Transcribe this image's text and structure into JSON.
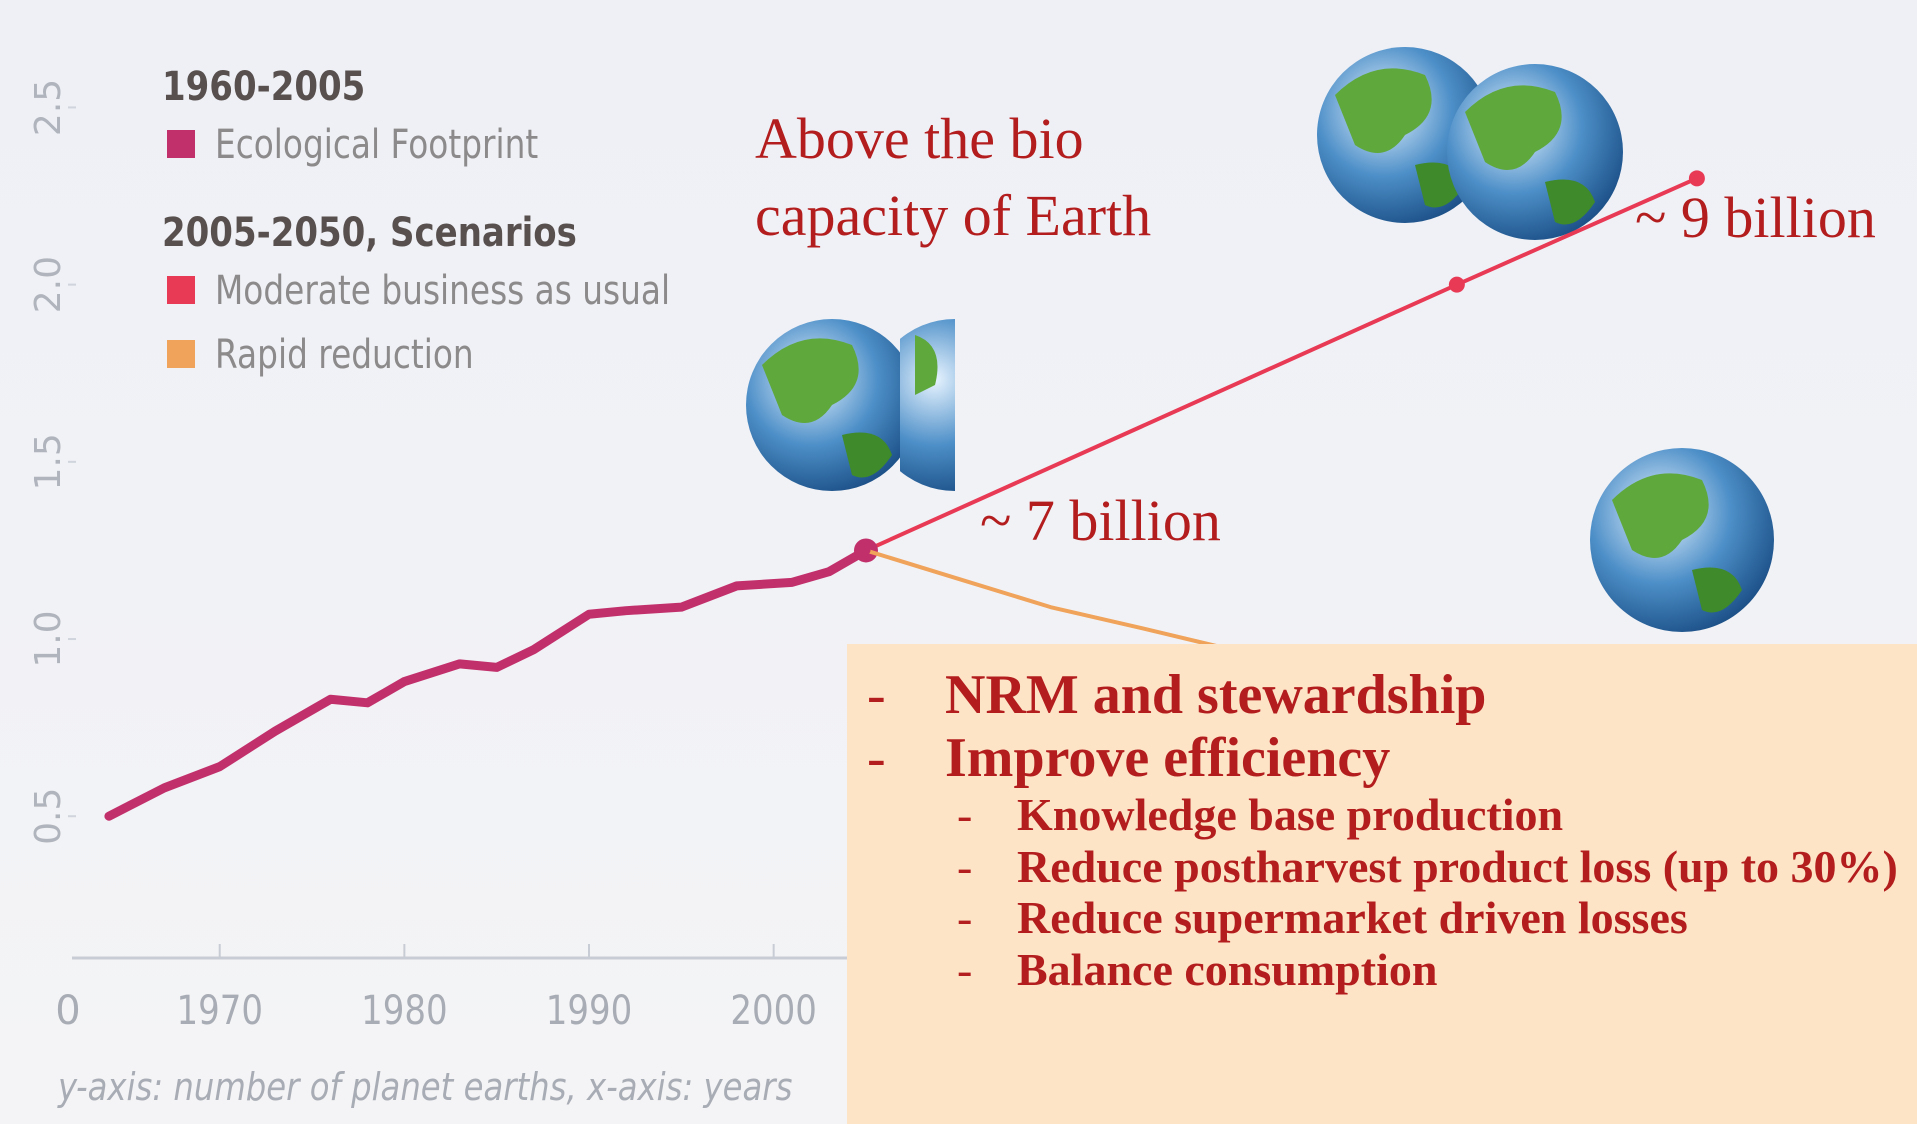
{
  "chart_data": {
    "type": "line",
    "legend_groups": [
      "1960-2005",
      "2005-2050, Scenarios"
    ],
    "series": [
      {
        "name": "Ecological Footprint",
        "color": "#c2306c",
        "group": 0,
        "x": [
          1964,
          1967,
          1970,
          1973,
          1976,
          1978,
          1980,
          1983,
          1985,
          1987,
          1990,
          1992,
          1995,
          1998,
          2001,
          2003,
          2005
        ],
        "values": [
          0.5,
          0.58,
          0.64,
          0.74,
          0.83,
          0.82,
          0.88,
          0.93,
          0.92,
          0.97,
          1.07,
          1.08,
          1.09,
          1.15,
          1.16,
          1.19,
          1.25
        ]
      },
      {
        "name": "Moderate business as usual",
        "color": "#e83a55",
        "group": 1,
        "x": [
          2005,
          2037,
          2050
        ],
        "values": [
          1.25,
          2.0,
          2.3
        ]
      },
      {
        "name": "Rapid reduction",
        "color": "#f0a35a",
        "group": 1,
        "x": [
          2005,
          2010,
          2015,
          2020,
          2024
        ],
        "values": [
          1.25,
          1.17,
          1.09,
          1.03,
          0.98
        ]
      }
    ],
    "xlim": [
      1962,
      2061
    ],
    "ylim": [
      0.1,
      2.6
    ],
    "xticks": [
      1970,
      1980,
      1990,
      2000
    ],
    "yticks": [
      0.5,
      {
        "value": 1,
        "label": "1.0"
      },
      1.5,
      {
        "value": 2,
        "label": "2.0"
      },
      2.5
    ],
    "axis_origin_label": "0",
    "caption": "y-axis: number of planet earths, x-axis: years",
    "annotations": [
      "Above the bio",
      "capacity of Earth",
      "~ 9 billion",
      "~ 7 billion"
    ],
    "bullets": [
      {
        "text": "NRM and stewardship",
        "level": 1
      },
      {
        "text": "Improve efficiency",
        "level": 1
      },
      {
        "text": "Knowledge base production",
        "level": 2
      },
      {
        "text": "Reduce postharvest product loss (up to 30%)",
        "level": 2
      },
      {
        "text": "Reduce supermarket driven losses",
        "level": 2
      },
      {
        "text": "Balance consumption",
        "level": 2
      }
    ],
    "bullet_marker": "-"
  }
}
